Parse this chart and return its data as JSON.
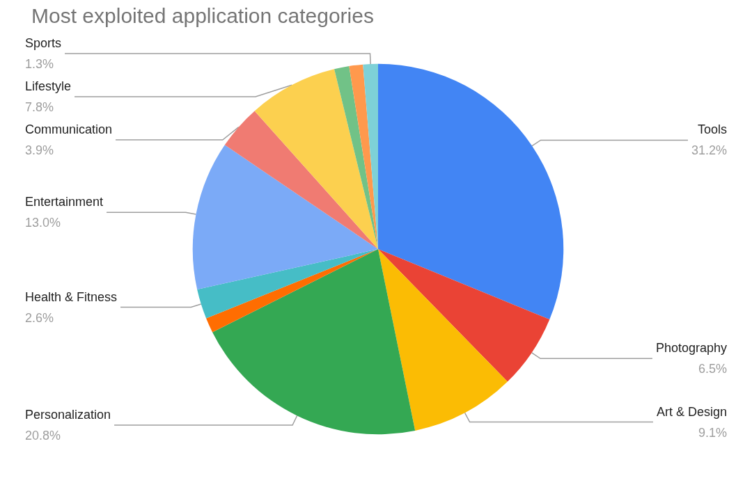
{
  "chart_data": {
    "type": "pie",
    "title": "Most exploited application categories",
    "categories": [
      "Tools",
      "Photography",
      "Art & Design",
      "Personalization",
      null,
      "Health & Fitness",
      "Entertainment",
      "Communication",
      "Lifestyle",
      null,
      null,
      "Sports"
    ],
    "values": [
      31.2,
      6.5,
      9.1,
      20.8,
      1.3,
      2.6,
      13.0,
      3.9,
      7.8,
      1.3,
      1.2,
      1.3
    ],
    "value_labels": [
      "31.2%",
      "6.5%",
      "9.1%",
      "20.8%",
      null,
      "2.6%",
      "13.0%",
      "3.9%",
      "7.8%",
      null,
      null,
      "1.3%"
    ],
    "colors": [
      "#4285f4",
      "#ea4335",
      "#fbbc04",
      "#34a853",
      "#ff6d01",
      "#46bdc6",
      "#7baaf7",
      "#f07b72",
      "#fcd04f",
      "#71c287",
      "#ff994d",
      "#7ed1d7"
    ],
    "legend": false
  }
}
